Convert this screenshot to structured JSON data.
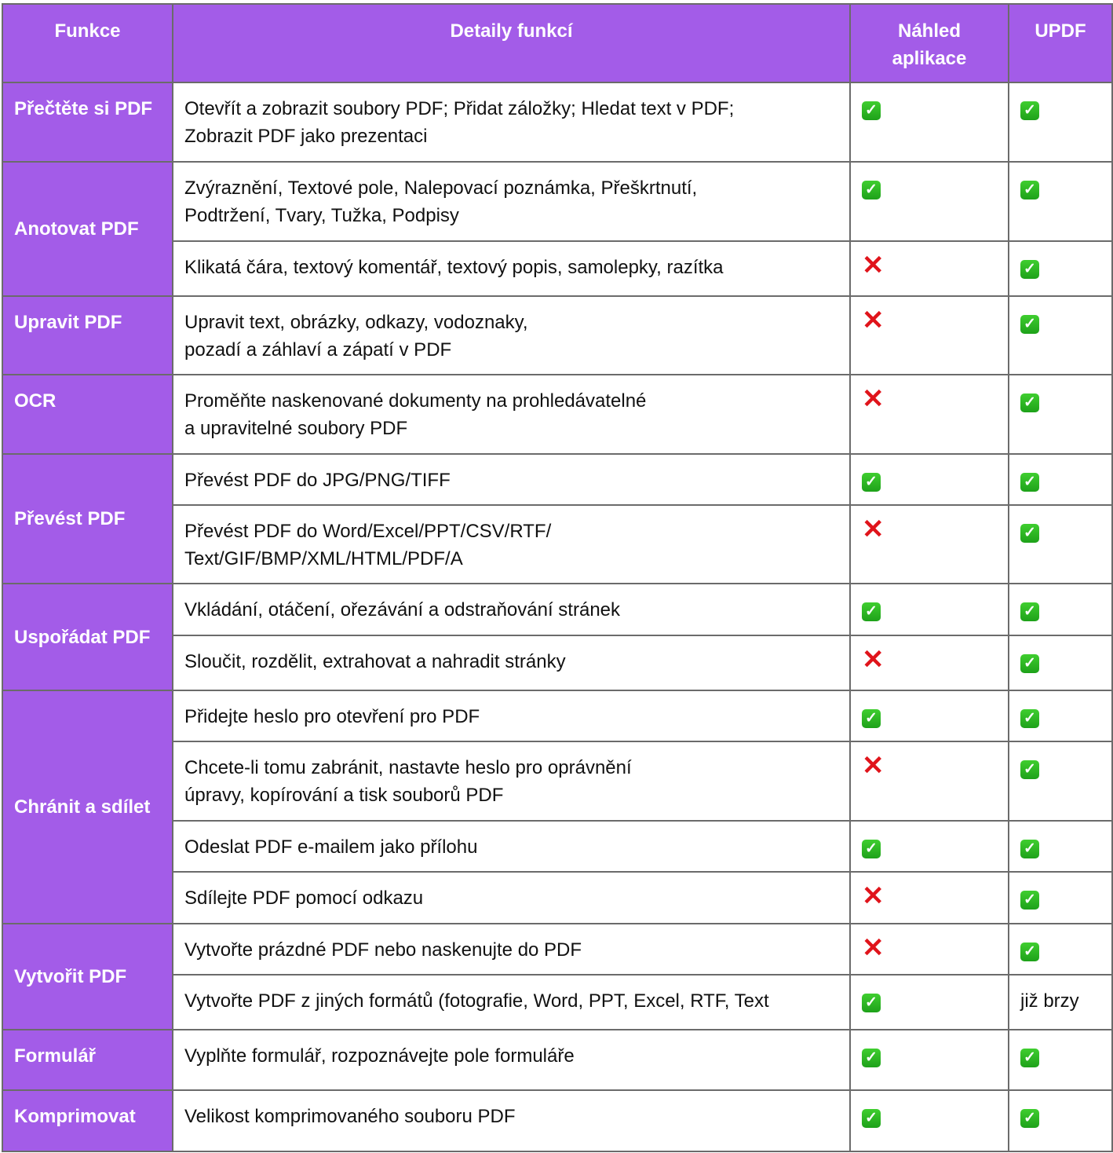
{
  "header": {
    "feature": "Funkce",
    "details": "Detaily funkcí",
    "preview": "Náhled aplikace",
    "updf": "UPDF"
  },
  "colors": {
    "accent": "#a35ce8",
    "check": "#22b01f",
    "cross": "#e0141b"
  },
  "groups": [
    {
      "feature": "Přečtěte si PDF",
      "align": "top",
      "rows": [
        {
          "details": "Otevřít a zobrazit soubory PDF; Přidat záložky; Hledat text v PDF;\nZobrazit PDF jako prezentaci",
          "preview": "check",
          "updf": "check",
          "h": 101
        }
      ]
    },
    {
      "feature": "Anotovat PDF",
      "rows": [
        {
          "details": "Zvýraznění, Textové pole, Nalepovací poznámka, Přeškrtnutí,\nPodtržení, Tvary, Tužka, Podpisy",
          "preview": "check",
          "updf": "check",
          "h": 101
        },
        {
          "details": "Klikatá čára, textový komentář, textový popis, samolepky, razítka",
          "preview": "cross",
          "updf": "check",
          "h": 70
        }
      ]
    },
    {
      "feature": "Upravit PDF",
      "align": "top",
      "rows": [
        {
          "details": "Upravit text, obrázky, odkazy, vodoznaky,\npozadí a záhlaví a zápatí v PDF",
          "preview": "cross",
          "updf": "check",
          "h": 100
        }
      ]
    },
    {
      "feature": "OCR",
      "align": "top",
      "rows": [
        {
          "details": "Proměňte naskenované dokumenty na prohledávatelné\na upravitelné soubory PDF",
          "preview": "cross",
          "updf": "check",
          "h": 101
        }
      ]
    },
    {
      "feature": "Převést PDF",
      "rows": [
        {
          "details": "Převést PDF do JPG/PNG/TIFF",
          "preview": "check",
          "updf": "check",
          "h": 65
        },
        {
          "details": "Převést PDF do Word/Excel/PPT/CSV/RTF/\nText/GIF/BMP/XML/HTML/PDF/A",
          "preview": "cross",
          "updf": "check",
          "h": 100
        }
      ]
    },
    {
      "feature": "Uspořádat PDF",
      "rows": [
        {
          "details": "Vkládání, otáčení, ořezávání a odstraňování stránek",
          "preview": "check",
          "updf": "check",
          "h": 66
        },
        {
          "details": "Sloučit, rozdělit, extrahovat a nahradit stránky",
          "preview": "cross",
          "updf": "check",
          "h": 70
        }
      ]
    },
    {
      "feature": "Chránit a sdílet",
      "rows": [
        {
          "details": "Přidejte heslo pro otevření pro PDF",
          "preview": "check",
          "updf": "check",
          "h": 65
        },
        {
          "details": "Chcete-li tomu zabránit, nastavte heslo pro oprávnění\núpravy, kopírování a tisk souborů PDF",
          "preview": "cross",
          "updf": "check",
          "h": 101
        },
        {
          "details": "Odeslat PDF e-mailem jako přílohu",
          "preview": "check",
          "updf": "check",
          "h": 65
        },
        {
          "details": "Sdílejte PDF pomocí odkazu",
          "preview": "cross",
          "updf": "check",
          "h": 66
        }
      ]
    },
    {
      "feature": "Vytvořit PDF",
      "rows": [
        {
          "details": "Vytvořte prázdné PDF nebo naskenujte do PDF",
          "preview": "cross",
          "updf": "check",
          "h": 65
        },
        {
          "details": "Vytvořte PDF z jiných formátů (fotografie, Word, PPT, Excel, RTF, Text",
          "preview": "check",
          "updf": "již brzy",
          "h": 70
        }
      ]
    },
    {
      "feature": "Formulář",
      "align": "top",
      "rows": [
        {
          "details": "Vyplňte formulář, rozpoznávejte pole formuláře",
          "preview": "check",
          "updf": "check",
          "h": 77
        }
      ]
    },
    {
      "feature": "Komprimovat",
      "align": "top",
      "rows": [
        {
          "details": "Velikost komprimovaného souboru PDF",
          "preview": "check",
          "updf": "check",
          "h": 78
        }
      ]
    }
  ]
}
